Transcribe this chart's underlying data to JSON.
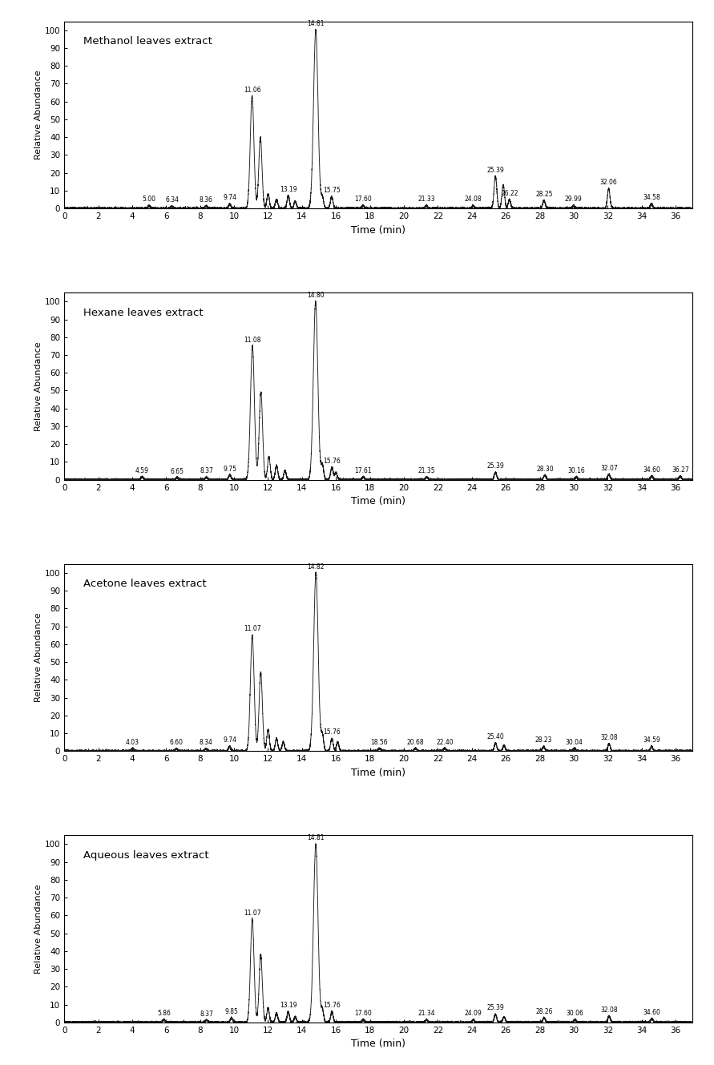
{
  "panels": [
    {
      "label": "Methanol leaves extract",
      "peaks": [
        {
          "time": 5.0,
          "height": 1.5,
          "label": "5.00"
        },
        {
          "time": 6.34,
          "height": 1.2,
          "label": "6.34"
        },
        {
          "time": 8.36,
          "height": 1.3,
          "label": "8.36"
        },
        {
          "time": 9.74,
          "height": 2.5,
          "label": "9.74"
        },
        {
          "time": 11.06,
          "height": 63,
          "label": "11.06"
        },
        {
          "time": 11.55,
          "height": 40,
          "label": ""
        },
        {
          "time": 12.0,
          "height": 8,
          "label": ""
        },
        {
          "time": 12.5,
          "height": 5,
          "label": ""
        },
        {
          "time": 13.19,
          "height": 7,
          "label": "13.19"
        },
        {
          "time": 13.6,
          "height": 4,
          "label": ""
        },
        {
          "time": 14.81,
          "height": 100,
          "label": "14.81"
        },
        {
          "time": 15.2,
          "height": 6,
          "label": ""
        },
        {
          "time": 15.75,
          "height": 6.5,
          "label": "15.75"
        },
        {
          "time": 17.6,
          "height": 1.5,
          "label": "17.60"
        },
        {
          "time": 21.33,
          "height": 1.5,
          "label": "21.33"
        },
        {
          "time": 24.08,
          "height": 1.5,
          "label": "24.08"
        },
        {
          "time": 25.39,
          "height": 18,
          "label": "25.39"
        },
        {
          "time": 25.85,
          "height": 13,
          "label": ""
        },
        {
          "time": 26.22,
          "height": 5,
          "label": "26.22"
        },
        {
          "time": 28.25,
          "height": 4.5,
          "label": "28.25"
        },
        {
          "time": 29.99,
          "height": 1.5,
          "label": "29.99"
        },
        {
          "time": 32.06,
          "height": 11,
          "label": "32.06"
        },
        {
          "time": 34.58,
          "height": 2.5,
          "label": "34.58"
        }
      ]
    },
    {
      "label": "Hexane leaves extract",
      "peaks": [
        {
          "time": 4.59,
          "height": 1.5,
          "label": "4.59"
        },
        {
          "time": 6.65,
          "height": 1.2,
          "label": "6.65"
        },
        {
          "time": 8.37,
          "height": 1.3,
          "label": "8.37"
        },
        {
          "time": 9.75,
          "height": 2.5,
          "label": "9.75"
        },
        {
          "time": 11.08,
          "height": 75,
          "label": "11.08"
        },
        {
          "time": 11.58,
          "height": 49,
          "label": ""
        },
        {
          "time": 12.05,
          "height": 13,
          "label": ""
        },
        {
          "time": 12.5,
          "height": 8,
          "label": ""
        },
        {
          "time": 13.0,
          "height": 5,
          "label": ""
        },
        {
          "time": 14.8,
          "height": 100,
          "label": "14.80"
        },
        {
          "time": 15.2,
          "height": 8,
          "label": ""
        },
        {
          "time": 15.76,
          "height": 7,
          "label": "15.76"
        },
        {
          "time": 16.0,
          "height": 4,
          "label": ""
        },
        {
          "time": 17.61,
          "height": 1.5,
          "label": "17.61"
        },
        {
          "time": 21.35,
          "height": 1.5,
          "label": "21.35"
        },
        {
          "time": 25.39,
          "height": 4,
          "label": "25.39"
        },
        {
          "time": 28.3,
          "height": 2.5,
          "label": "28.30"
        },
        {
          "time": 30.16,
          "height": 1.5,
          "label": "30.16"
        },
        {
          "time": 32.07,
          "height": 3,
          "label": "32.07"
        },
        {
          "time": 34.6,
          "height": 2,
          "label": "34.60"
        },
        {
          "time": 36.27,
          "height": 2,
          "label": "36.27"
        }
      ]
    },
    {
      "label": "Acetone leaves extract",
      "peaks": [
        {
          "time": 4.03,
          "height": 1.5,
          "label": "4.03"
        },
        {
          "time": 6.6,
          "height": 1.2,
          "label": "6.60"
        },
        {
          "time": 8.34,
          "height": 1.3,
          "label": "8.34"
        },
        {
          "time": 9.74,
          "height": 2.5,
          "label": "9.74"
        },
        {
          "time": 11.07,
          "height": 65,
          "label": "11.07"
        },
        {
          "time": 11.57,
          "height": 44,
          "label": ""
        },
        {
          "time": 12.0,
          "height": 12,
          "label": ""
        },
        {
          "time": 12.5,
          "height": 7,
          "label": ""
        },
        {
          "time": 12.9,
          "height": 5,
          "label": ""
        },
        {
          "time": 14.82,
          "height": 100,
          "label": "14.82"
        },
        {
          "time": 15.2,
          "height": 9,
          "label": ""
        },
        {
          "time": 15.76,
          "height": 7,
          "label": "15.76"
        },
        {
          "time": 16.1,
          "height": 5,
          "label": ""
        },
        {
          "time": 18.56,
          "height": 1.5,
          "label": "18.56"
        },
        {
          "time": 20.68,
          "height": 1.5,
          "label": "20.68"
        },
        {
          "time": 22.4,
          "height": 1.5,
          "label": "22.40"
        },
        {
          "time": 25.4,
          "height": 4.5,
          "label": "25.40"
        },
        {
          "time": 25.9,
          "height": 3,
          "label": ""
        },
        {
          "time": 28.23,
          "height": 2.5,
          "label": "28.23"
        },
        {
          "time": 30.04,
          "height": 1.5,
          "label": "30.04"
        },
        {
          "time": 32.08,
          "height": 4,
          "label": "32.08"
        },
        {
          "time": 34.59,
          "height": 2.5,
          "label": "34.59"
        }
      ]
    },
    {
      "label": "Aqueous leaves extract",
      "peaks": [
        {
          "time": 5.86,
          "height": 1.5,
          "label": "5.86"
        },
        {
          "time": 8.37,
          "height": 1.3,
          "label": "8.37"
        },
        {
          "time": 9.85,
          "height": 2.5,
          "label": "9.85"
        },
        {
          "time": 11.07,
          "height": 58,
          "label": "11.07"
        },
        {
          "time": 11.57,
          "height": 38,
          "label": ""
        },
        {
          "time": 12.0,
          "height": 8,
          "label": ""
        },
        {
          "time": 12.5,
          "height": 5,
          "label": ""
        },
        {
          "time": 13.19,
          "height": 6,
          "label": "13.19"
        },
        {
          "time": 13.6,
          "height": 3,
          "label": ""
        },
        {
          "time": 14.81,
          "height": 100,
          "label": "14.81"
        },
        {
          "time": 15.2,
          "height": 7,
          "label": ""
        },
        {
          "time": 15.76,
          "height": 6,
          "label": "15.76"
        },
        {
          "time": 17.6,
          "height": 1.5,
          "label": "17.60"
        },
        {
          "time": 21.34,
          "height": 1.5,
          "label": "21.34"
        },
        {
          "time": 24.09,
          "height": 1.5,
          "label": "24.09"
        },
        {
          "time": 25.39,
          "height": 4.5,
          "label": "25.39"
        },
        {
          "time": 25.9,
          "height": 3,
          "label": ""
        },
        {
          "time": 28.26,
          "height": 2.5,
          "label": "28.26"
        },
        {
          "time": 30.06,
          "height": 1.5,
          "label": "30.06"
        },
        {
          "time": 32.08,
          "height": 3.5,
          "label": "32.08"
        },
        {
          "time": 34.6,
          "height": 2,
          "label": "34.60"
        }
      ]
    }
  ],
  "xlim": [
    0,
    37
  ],
  "ylim": [
    0,
    105
  ],
  "xticks": [
    0,
    2,
    4,
    6,
    8,
    10,
    12,
    14,
    16,
    18,
    20,
    22,
    24,
    26,
    28,
    30,
    32,
    34,
    36
  ],
  "yticks": [
    0,
    10,
    20,
    30,
    40,
    50,
    60,
    70,
    80,
    90,
    100
  ],
  "xlabel": "Time (min)",
  "ylabel": "Relative Abundance",
  "line_color": "#1a1a1a",
  "background_color": "#ffffff"
}
